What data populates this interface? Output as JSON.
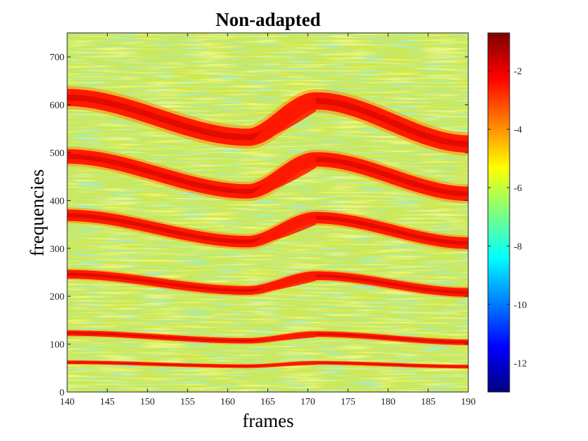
{
  "chart_data": {
    "type": "heatmap",
    "title": "Non-adapted",
    "xlabel": "frames",
    "ylabel": "frequencies",
    "xlim": [
      140,
      190
    ],
    "ylim": [
      0,
      750
    ],
    "xticks": [
      140,
      145,
      150,
      155,
      160,
      165,
      170,
      175,
      180,
      185,
      190
    ],
    "yticks": [
      0,
      100,
      200,
      300,
      400,
      500,
      600,
      700
    ],
    "colormap": "jet",
    "background_colors": [
      "#e7f03c",
      "#9ee86a",
      "#58d4a0"
    ],
    "colorbar": {
      "range": [
        -13,
        -0.7
      ],
      "ticks": [
        -12,
        -10,
        -8,
        -6,
        -4,
        -2
      ],
      "colors": [
        "#00007f",
        "#0000ff",
        "#007fff",
        "#00ffff",
        "#7fff7f",
        "#ffff00",
        "#ff7f00",
        "#ff0000",
        "#7f0000"
      ]
    },
    "ridge_color": "#ff1a00",
    "ridge_core_color": "#d10000",
    "harmonics": [
      {
        "start": 62,
        "dip": 54,
        "peak": 61,
        "end": 53,
        "width": 7
      },
      {
        "start": 123,
        "dip": 107,
        "peak": 121,
        "end": 104,
        "width": 11
      },
      {
        "start": 246,
        "dip": 212,
        "peak": 243,
        "end": 208,
        "width": 18
      },
      {
        "start": 369,
        "dip": 314,
        "peak": 364,
        "end": 311,
        "width": 24
      },
      {
        "start": 492,
        "dip": 419,
        "peak": 486,
        "end": 414,
        "width": 30
      },
      {
        "start": 615,
        "dip": 532,
        "peak": 608,
        "end": 518,
        "width": 36
      }
    ],
    "transition_frames": {
      "dip": 162.5,
      "peak": 171,
      "end": 190
    },
    "transition_bulge_peak": 168.5
  }
}
